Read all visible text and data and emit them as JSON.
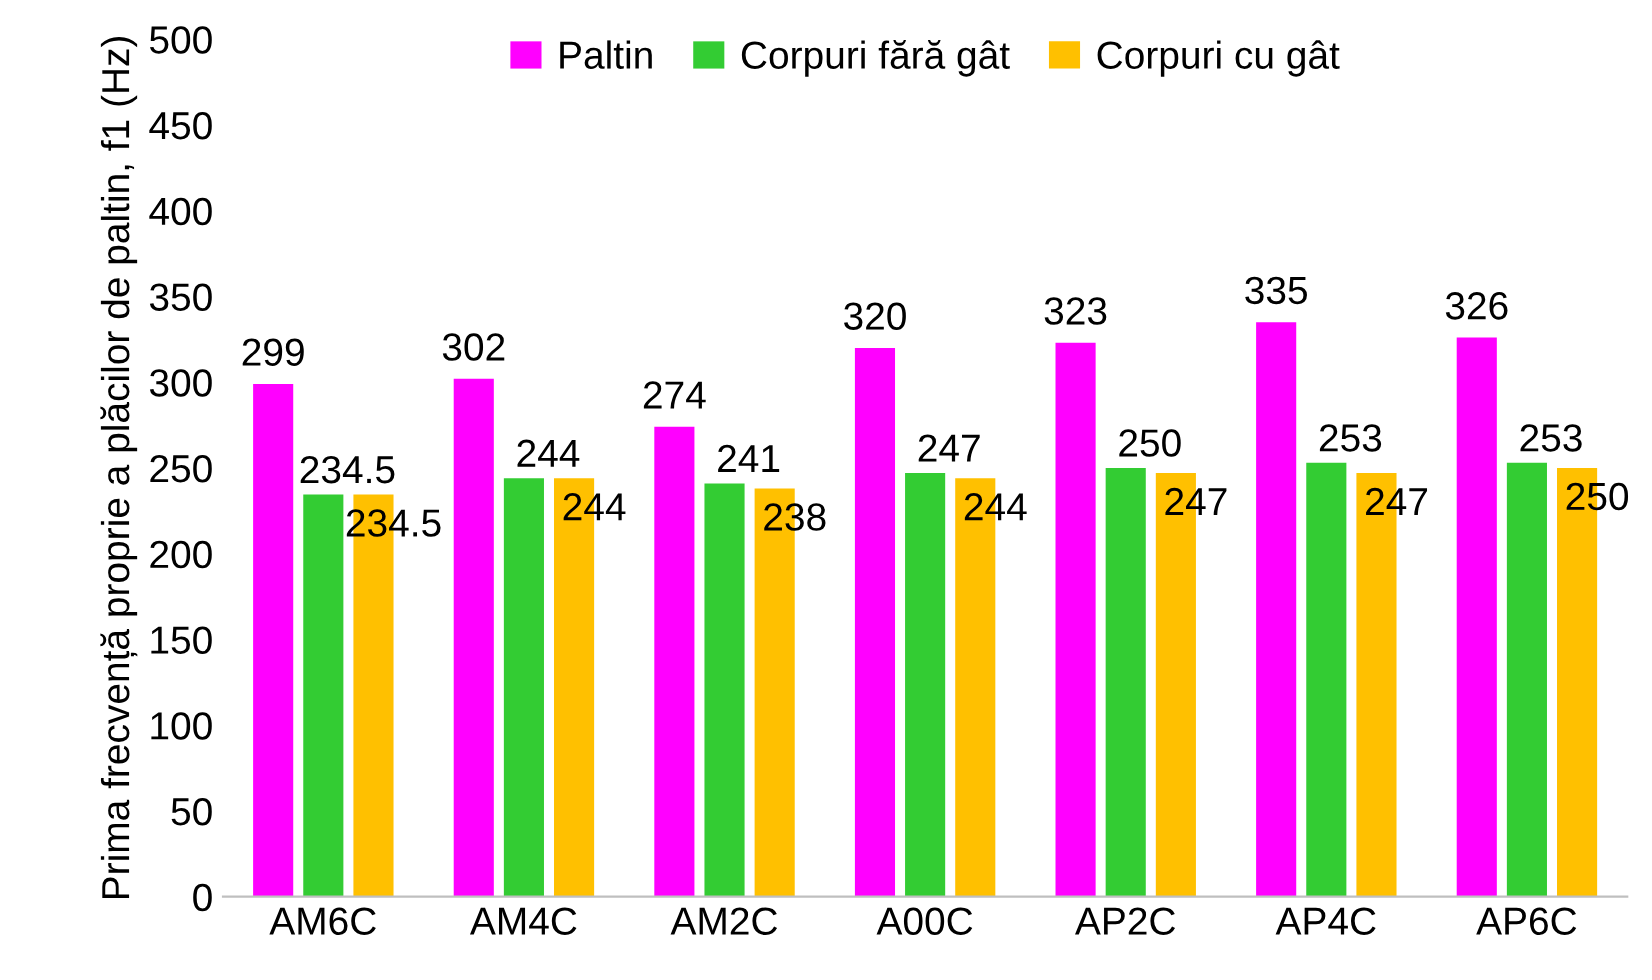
{
  "chart_data": {
    "type": "bar",
    "ylabel": "Prima frecvență proprie a plăcilor de paltin, f1 (Hz)",
    "categories": [
      "AM6C",
      "AM4C",
      "AM2C",
      "A00C",
      "AP2C",
      "AP4C",
      "AP6C"
    ],
    "series": [
      {
        "name": "Paltin",
        "color": "#ff00ff",
        "values": [
          299,
          302,
          274,
          320,
          323,
          335,
          326
        ]
      },
      {
        "name": "Corpuri fără gât",
        "color": "#33cc33",
        "values": [
          234.5,
          244,
          241,
          247,
          250,
          253,
          253
        ]
      },
      {
        "name": "Corpuri cu gât",
        "color": "#ffc000",
        "values": [
          234.5,
          244,
          238,
          244,
          247,
          247,
          250
        ]
      }
    ],
    "ylim": [
      0,
      500
    ],
    "yticks": [
      0,
      50,
      100,
      150,
      200,
      250,
      300,
      350,
      400,
      450,
      500
    ],
    "data_labels": true,
    "grid": false,
    "legend": "top"
  }
}
